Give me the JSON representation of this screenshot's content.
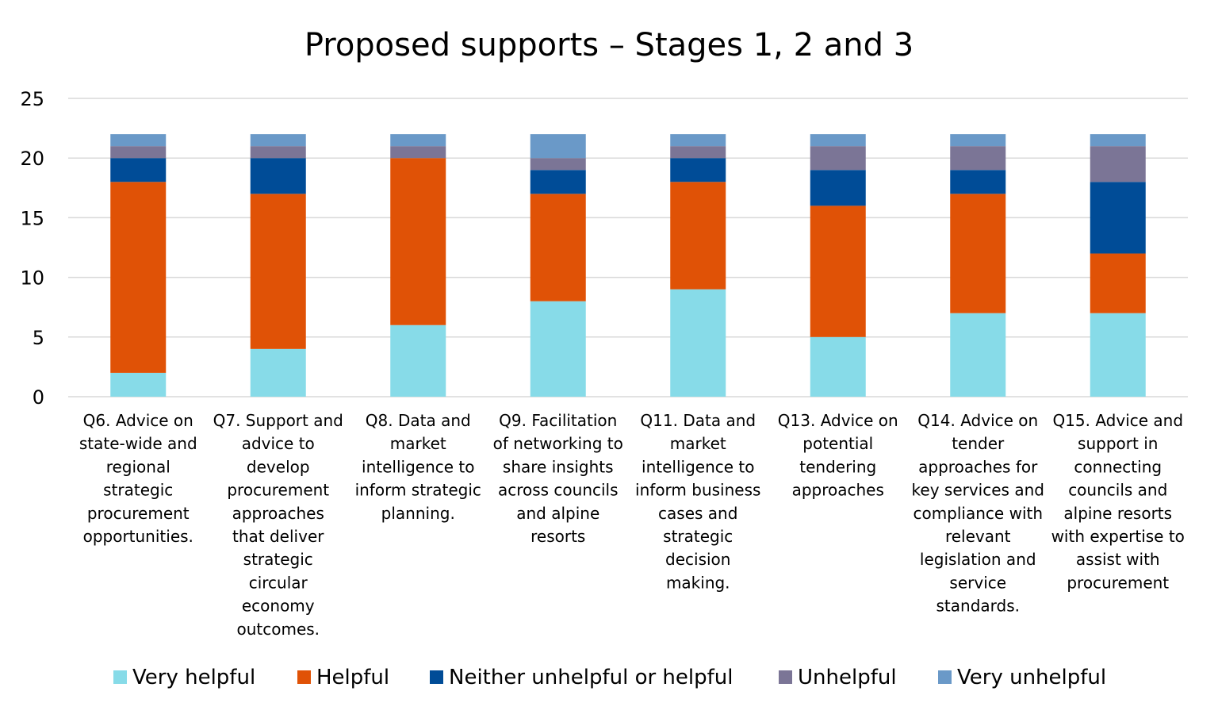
{
  "chart_data": {
    "type": "bar",
    "stacked": true,
    "title": "Proposed supports – Stages 1, 2 and 3",
    "xlabel": "",
    "ylabel": "",
    "ylim": [
      0,
      25
    ],
    "yticks": [
      0,
      5,
      10,
      15,
      20,
      25
    ],
    "grid": true,
    "legend_position": "bottom",
    "categories": [
      "Q6. Advice on state-wide and regional strategic procurement opportunities.",
      "Q7. Support and advice to develop procurement approaches that deliver strategic circular economy outcomes.",
      "Q8. Data and market intelligence to inform strategic planning.",
      "Q9. Facilitation of networking to share insights across councils and alpine resorts",
      "Q11. Data and market intelligence to inform business cases and strategic decision making.",
      "Q13. Advice on potential tendering approaches",
      "Q14. Advice on tender approaches for key services and compliance with relevant legislation and service standards.",
      "Q15. Advice and support in connecting councils and alpine resorts with expertise to assist with procurement"
    ],
    "category_lines": [
      [
        "Q6. Advice on",
        "state-wide and",
        "regional",
        "strategic",
        "procurement",
        "opportunities."
      ],
      [
        "Q7. Support and",
        "advice to",
        "develop",
        "procurement",
        "approaches",
        "that deliver",
        "strategic",
        "circular",
        "economy",
        "outcomes."
      ],
      [
        "Q8. Data and",
        "market",
        "intelligence to",
        "inform strategic",
        "planning."
      ],
      [
        "Q9. Facilitation",
        "of networking to",
        "share insights",
        "across councils",
        "and alpine",
        "resorts"
      ],
      [
        "Q11. Data and",
        "market",
        "intelligence to",
        "inform business",
        "cases and",
        "strategic",
        "decision",
        "making."
      ],
      [
        "Q13. Advice on",
        "potential",
        "tendering",
        "approaches"
      ],
      [
        "Q14. Advice on",
        "tender",
        "approaches for",
        "key services and",
        "compliance with",
        "relevant",
        "legislation and",
        "service",
        "standards."
      ],
      [
        "Q15. Advice and",
        "support in",
        "connecting",
        "councils and",
        "alpine resorts",
        "with expertise to",
        "assist with",
        "procurement"
      ]
    ],
    "series": [
      {
        "name": "Very helpful",
        "color": "#87dbe8",
        "values": [
          2,
          4,
          6,
          8,
          9,
          5,
          7,
          7
        ]
      },
      {
        "name": "Helpful",
        "color": "#e05206",
        "values": [
          16,
          13,
          14,
          9,
          9,
          11,
          10,
          5
        ]
      },
      {
        "name": "Neither unhelpful or helpful",
        "color": "#004c97",
        "values": [
          2,
          3,
          0,
          2,
          2,
          3,
          2,
          6
        ]
      },
      {
        "name": "Unhelpful",
        "color": "#7b7596",
        "values": [
          1,
          1,
          1,
          1,
          1,
          2,
          2,
          3
        ]
      },
      {
        "name": "Very unhelpful",
        "color": "#6a99c8",
        "values": [
          1,
          1,
          1,
          2,
          1,
          1,
          1,
          1
        ]
      }
    ]
  }
}
